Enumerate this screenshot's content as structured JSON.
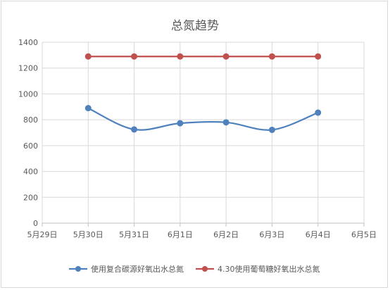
{
  "chart_data": {
    "type": "line",
    "title": "总氮趋势",
    "categories": [
      "5月29日",
      "5月30日",
      "5月31日",
      "6月1日",
      "6月2日",
      "6月3日",
      "6月4日",
      "6月5日"
    ],
    "y_ticks": [
      "0",
      "200",
      "400",
      "600",
      "800",
      "1000",
      "1200",
      "1400"
    ],
    "ylim": [
      0,
      1400
    ],
    "grid": true,
    "smooth": true,
    "legend_position": "bottom",
    "series": [
      {
        "name": "使用复合碳源好氧出水总氮",
        "color": "#4f81bd",
        "x": [
          "5月30日",
          "5月31日",
          "6月1日",
          "6月2日",
          "6月3日",
          "6月4日"
        ],
        "values": [
          890,
          725,
          773,
          780,
          722,
          855
        ]
      },
      {
        "name": "4.30使用葡萄糖好氧出水总氮",
        "color": "#c0504d",
        "x": [
          "5月30日",
          "5月31日",
          "6月1日",
          "6月2日",
          "6月3日",
          "6月4日"
        ],
        "values": [
          1290,
          1290,
          1290,
          1290,
          1290,
          1290
        ]
      }
    ]
  }
}
